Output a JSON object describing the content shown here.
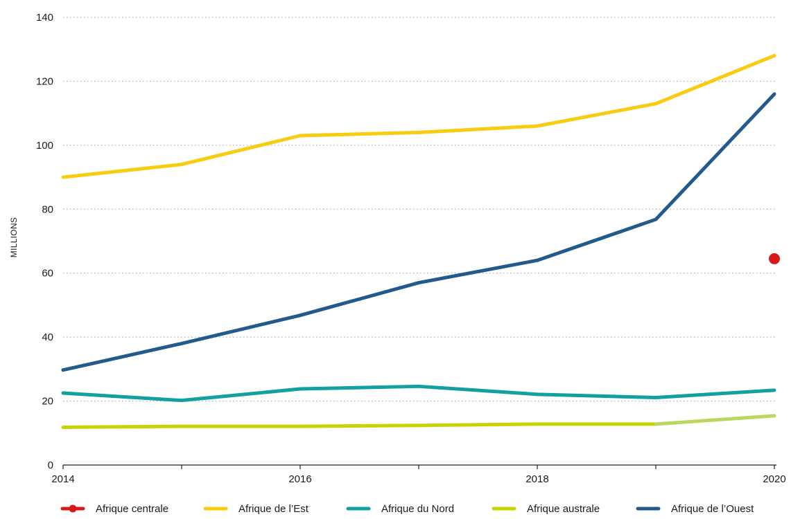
{
  "chart_data": {
    "type": "line",
    "title": "",
    "xlabel": "",
    "ylabel": "MILLIONS",
    "x": [
      2014,
      2015,
      2016,
      2017,
      2018,
      2019,
      2020
    ],
    "x_tick_labels": [
      "2014",
      "2016",
      "2018",
      "2020"
    ],
    "x_tick_values": [
      2014,
      2016,
      2018,
      2020
    ],
    "xlim": [
      2014,
      2020
    ],
    "ylim": [
      0,
      140
    ],
    "y_ticks": [
      0,
      20,
      40,
      60,
      80,
      100,
      120,
      140
    ],
    "grid": "horizontal dotted",
    "legend_position": "bottom",
    "series": [
      {
        "name": "Afrique centrale",
        "color": "#d7191c",
        "marker": "dot",
        "values": [
          null,
          null,
          null,
          null,
          null,
          null,
          64.5
        ]
      },
      {
        "name": "Afrique de l’Est",
        "color": "#f8cc10",
        "values": [
          90,
          94,
          103,
          104,
          106,
          113,
          128
        ]
      },
      {
        "name": "Afrique du Nord",
        "color": "#12a0a0",
        "values": [
          22.5,
          20.2,
          23.8,
          24.6,
          22.1,
          21.1,
          23.4
        ]
      },
      {
        "name": "Afrique australe",
        "color": "#c8d400",
        "color_last_segment": "#bcd75e",
        "values": [
          11.8,
          12.1,
          12.1,
          12.4,
          12.8,
          12.8,
          15.4
        ]
      },
      {
        "name": "Afrique de l’Ouest",
        "color": "#235a8c",
        "values": [
          29.7,
          38,
          46.8,
          57,
          64,
          76.8,
          116
        ]
      }
    ]
  }
}
